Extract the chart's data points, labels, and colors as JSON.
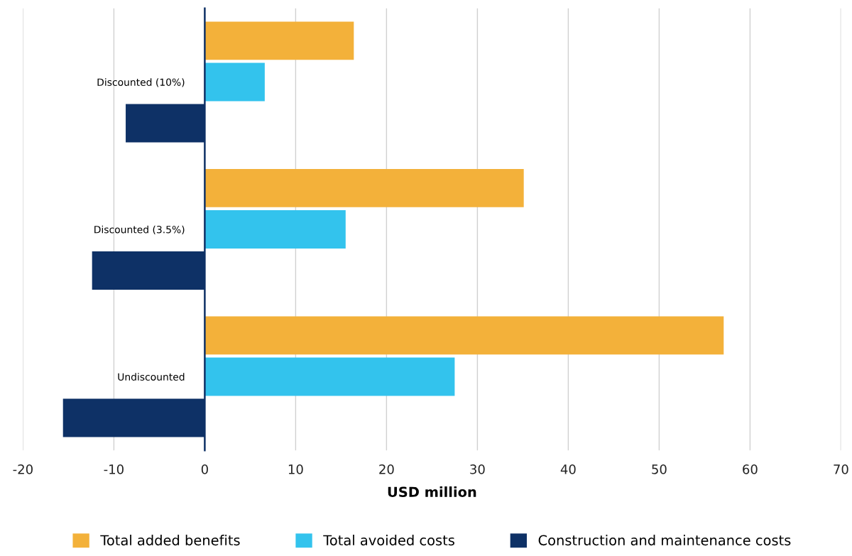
{
  "chart_data": {
    "type": "bar",
    "orientation": "horizontal",
    "xlabel": "USD million",
    "categories": [
      "Discounted (10%)",
      "Discounted (3.5%)",
      "Undiscounted"
    ],
    "series": [
      {
        "name": "Total added benefits",
        "color": "#f3b13a",
        "values": [
          16.4,
          35.1,
          57.1
        ]
      },
      {
        "name": "Total avoided costs",
        "color": "#33c3ed",
        "values": [
          6.6,
          15.5,
          27.5
        ]
      },
      {
        "name": "Construction and maintenance costs",
        "color": "#0e3166",
        "values": [
          -8.7,
          -12.4,
          -15.6
        ]
      }
    ],
    "xlim": [
      -20,
      70
    ],
    "xticks": [
      -20,
      -10,
      0,
      10,
      20,
      30,
      40,
      50,
      60,
      70
    ],
    "grid": "x",
    "legend": "bottom"
  }
}
